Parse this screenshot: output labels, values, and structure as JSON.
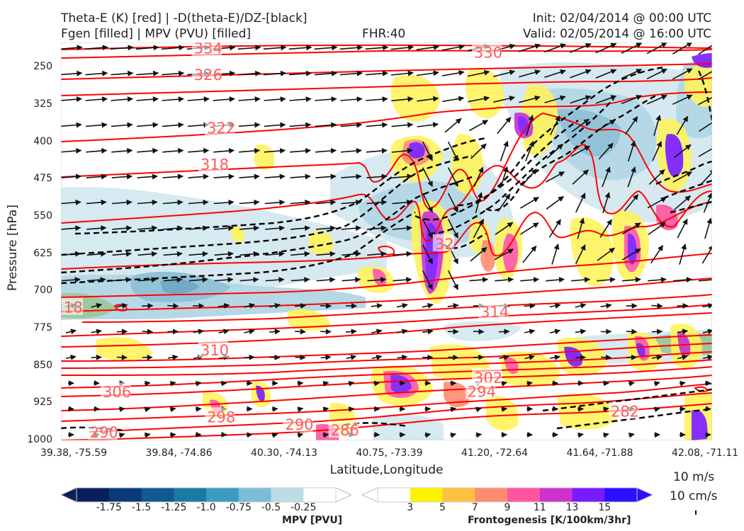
{
  "header": {
    "line1_left": "Theta-E (K) [red] | -D(theta-E)/DZ-[black]",
    "line2_left": "Fgen [filled] | MPV (PVU) [filled]",
    "center": "FHR:40",
    "line1_right": "Init: 02/04/2014 @ 00:00 UTC",
    "line2_right": "Valid: 02/05/2014 @ 16:00 UTC"
  },
  "chart_data": {
    "type": "heatmap",
    "xlabel": "Latitude,Longitude",
    "ylabel": "Pressure [hPa]",
    "yaxis_inverted": true,
    "ylim": [
      1000,
      200
    ],
    "x_ticks": [
      "39.38, -75.59",
      "39.84, -74.86",
      "40.30, -74.13",
      "40.75, -73.39",
      "41.20, -72.64",
      "41.64, -71.88",
      "42.08, -71.11"
    ],
    "y_ticks": [
      250,
      325,
      400,
      475,
      550,
      625,
      700,
      775,
      850,
      925,
      1000
    ],
    "theta_e_contour_labels": [
      "334",
      "330",
      "326",
      "322",
      "318",
      "318",
      "314",
      "310",
      "306",
      "302",
      "298",
      "294",
      "290",
      "290",
      "286",
      "282",
      "32"
    ],
    "theta_e_label_positions": [
      {
        "text": "334",
        "p": 211,
        "xi": 0.2
      },
      {
        "text": "330",
        "p": 219,
        "xi": 0.63
      },
      {
        "text": "326",
        "p": 264,
        "xi": 0.2
      },
      {
        "text": "322",
        "p": 371,
        "xi": 0.22
      },
      {
        "text": "318",
        "p": 444,
        "xi": 0.21
      },
      {
        "text": "314",
        "p": 741,
        "xi": 0.64
      },
      {
        "text": "310",
        "p": 818,
        "xi": 0.21
      },
      {
        "text": "306",
        "p": 902,
        "xi": 0.06
      },
      {
        "text": "302",
        "p": 873,
        "xi": 0.63
      },
      {
        "text": "298",
        "p": 952,
        "xi": 0.22
      },
      {
        "text": "294",
        "p": 901,
        "xi": 0.62
      },
      {
        "text": "290",
        "p": 967,
        "xi": 0.34
      },
      {
        "text": "286",
        "p": 979,
        "xi": 0.41
      },
      {
        "text": "282",
        "p": 941,
        "xi": 0.84
      },
      {
        "text": "290",
        "p": 983,
        "xi": 0.04
      },
      {
        "text": "18",
        "p": 732,
        "xi": 0.0
      },
      {
        "text": "32",
        "p": 604,
        "xi": 0.57
      }
    ],
    "colorbars": [
      {
        "title": "MPV [PVU]",
        "tick_labels": [
          "-1.75",
          "-1.5",
          "-1.25",
          "-1.0",
          "-0.75",
          "-0.5",
          "-0.25"
        ],
        "colors": [
          "#0a1f5c",
          "#0b3a78",
          "#0f5a8f",
          "#1a7aa3",
          "#3a9abf",
          "#7dbcd6",
          "#bcdde6",
          "#ffffff"
        ]
      },
      {
        "title": "Frontogenesis [K/100km/3hr]",
        "tick_labels": [
          "3",
          "5",
          "7",
          "9",
          "11",
          "13",
          "15"
        ],
        "colors": [
          "#ffffff",
          "#fff200",
          "#ffc040",
          "#ff8c70",
          "#ff55a0",
          "#cc33cc",
          "#7a1aff",
          "#2a10ff"
        ]
      }
    ],
    "vector_key": {
      "label1": "10 m/s",
      "label2": "10 cm/s"
    },
    "colors": {
      "theta_e": "#ff0000",
      "dthetae_dz": "#000000",
      "wind_vectors": "#111111"
    }
  }
}
